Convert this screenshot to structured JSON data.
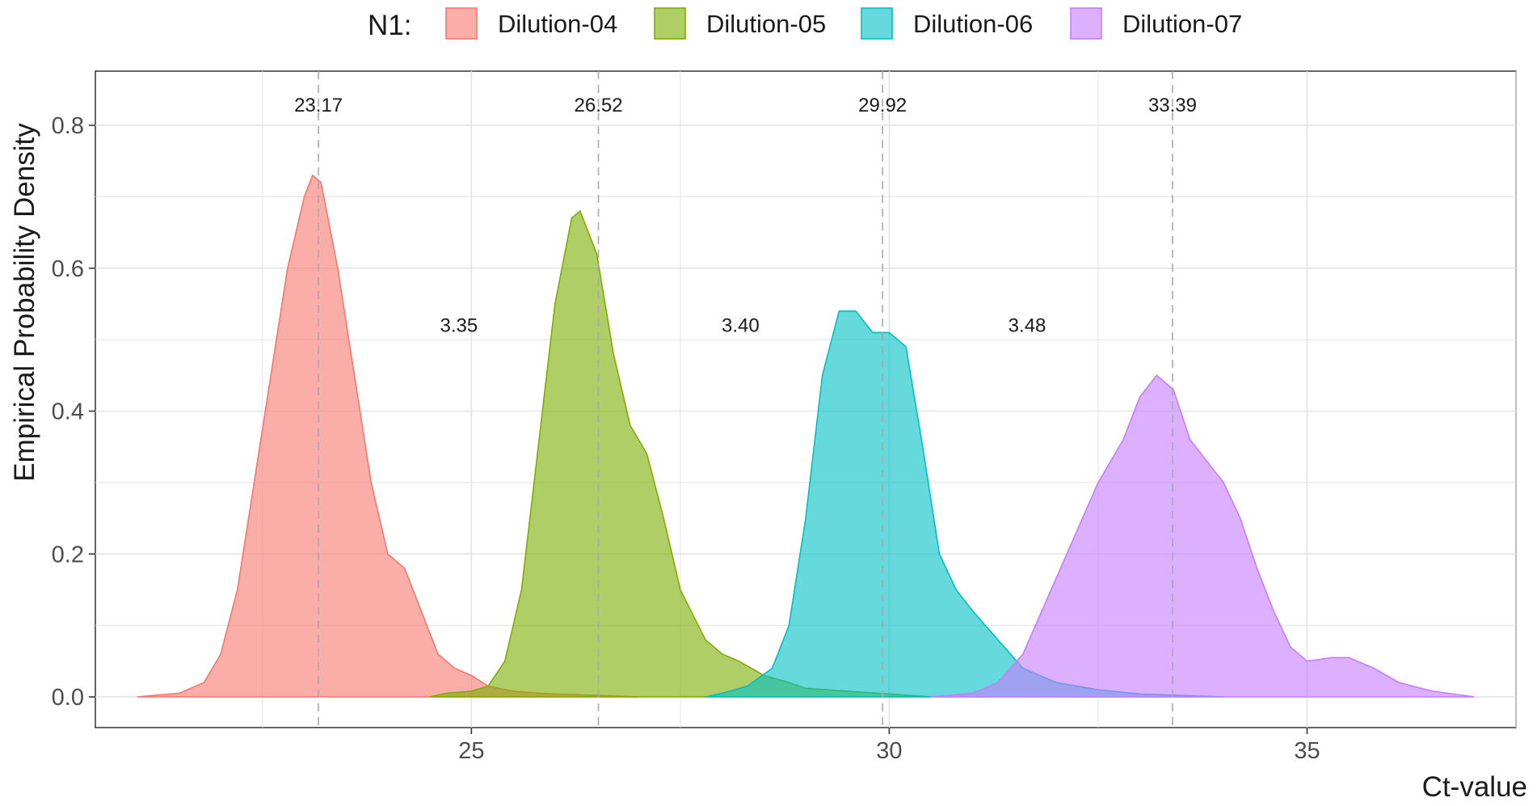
{
  "chart_data": {
    "type": "area",
    "title": "",
    "xlabel": "Ct-value",
    "ylabel": "Empirical Probability Density",
    "legend": {
      "title": "N1:",
      "placement": "top",
      "entries": [
        "Dilution-04",
        "Dilution-05",
        "Dilution-06",
        "Dilution-07"
      ]
    },
    "xlim": [
      20.5,
      37.5
    ],
    "ylim": [
      -0.04,
      0.8
    ],
    "x_ticks": [
      25,
      30,
      35
    ],
    "y_ticks": [
      0.0,
      0.2,
      0.4,
      0.6,
      0.8
    ],
    "x_tick_labels": [
      "25",
      "30",
      "35"
    ],
    "y_tick_labels": [
      "0.0",
      "0.2",
      "0.4",
      "0.6",
      "0.8"
    ],
    "grid": true,
    "series": [
      {
        "name": "Dilution-04",
        "color": "#F8766D",
        "mean": 23.17,
        "mean_label": "23.17",
        "points": [
          [
            21.0,
            0.0
          ],
          [
            21.2,
            0.002
          ],
          [
            21.5,
            0.005
          ],
          [
            21.8,
            0.02
          ],
          [
            22.0,
            0.06
          ],
          [
            22.2,
            0.15
          ],
          [
            22.4,
            0.3
          ],
          [
            22.6,
            0.45
          ],
          [
            22.8,
            0.6
          ],
          [
            23.0,
            0.7
          ],
          [
            23.1,
            0.73
          ],
          [
            23.2,
            0.72
          ],
          [
            23.4,
            0.6
          ],
          [
            23.6,
            0.45
          ],
          [
            23.8,
            0.3
          ],
          [
            24.0,
            0.2
          ],
          [
            24.2,
            0.18
          ],
          [
            24.4,
            0.12
          ],
          [
            24.6,
            0.06
          ],
          [
            24.8,
            0.04
          ],
          [
            25.0,
            0.03
          ],
          [
            25.2,
            0.015
          ],
          [
            25.5,
            0.008
          ],
          [
            25.8,
            0.005
          ],
          [
            26.0,
            0.004
          ],
          [
            26.5,
            0.002
          ],
          [
            27.0,
            0.0
          ]
        ]
      },
      {
        "name": "Dilution-05",
        "color": "#7CAE00",
        "mean": 26.52,
        "mean_label": "26.52",
        "points": [
          [
            24.5,
            0.0
          ],
          [
            24.7,
            0.005
          ],
          [
            25.0,
            0.008
          ],
          [
            25.2,
            0.015
          ],
          [
            25.4,
            0.05
          ],
          [
            25.6,
            0.15
          ],
          [
            25.8,
            0.35
          ],
          [
            26.0,
            0.55
          ],
          [
            26.2,
            0.67
          ],
          [
            26.3,
            0.68
          ],
          [
            26.5,
            0.62
          ],
          [
            26.7,
            0.48
          ],
          [
            26.9,
            0.38
          ],
          [
            27.1,
            0.34
          ],
          [
            27.3,
            0.25
          ],
          [
            27.5,
            0.15
          ],
          [
            27.8,
            0.08
          ],
          [
            28.0,
            0.06
          ],
          [
            28.2,
            0.05
          ],
          [
            28.5,
            0.03
          ],
          [
            28.8,
            0.02
          ],
          [
            29.0,
            0.012
          ],
          [
            29.5,
            0.008
          ],
          [
            30.0,
            0.004
          ],
          [
            30.5,
            0.0
          ]
        ]
      },
      {
        "name": "Dilution-06",
        "color": "#00BFC4",
        "mean": 29.92,
        "mean_label": "29.92",
        "points": [
          [
            27.8,
            0.0
          ],
          [
            28.0,
            0.005
          ],
          [
            28.3,
            0.015
          ],
          [
            28.6,
            0.04
          ],
          [
            28.8,
            0.1
          ],
          [
            29.0,
            0.25
          ],
          [
            29.2,
            0.45
          ],
          [
            29.4,
            0.54
          ],
          [
            29.6,
            0.54
          ],
          [
            29.8,
            0.51
          ],
          [
            30.0,
            0.51
          ],
          [
            30.2,
            0.49
          ],
          [
            30.4,
            0.35
          ],
          [
            30.6,
            0.2
          ],
          [
            30.8,
            0.15
          ],
          [
            31.0,
            0.12
          ],
          [
            31.3,
            0.08
          ],
          [
            31.6,
            0.04
          ],
          [
            32.0,
            0.02
          ],
          [
            32.5,
            0.01
          ],
          [
            33.0,
            0.004
          ],
          [
            34.0,
            0.0
          ]
        ]
      },
      {
        "name": "Dilution-07",
        "color": "#C77CFF",
        "mean": 33.39,
        "mean_label": "33.39",
        "points": [
          [
            30.5,
            0.0
          ],
          [
            31.0,
            0.005
          ],
          [
            31.3,
            0.02
          ],
          [
            31.6,
            0.06
          ],
          [
            31.9,
            0.14
          ],
          [
            32.2,
            0.22
          ],
          [
            32.5,
            0.3
          ],
          [
            32.8,
            0.36
          ],
          [
            33.0,
            0.42
          ],
          [
            33.2,
            0.45
          ],
          [
            33.4,
            0.43
          ],
          [
            33.6,
            0.36
          ],
          [
            33.8,
            0.33
          ],
          [
            34.0,
            0.3
          ],
          [
            34.2,
            0.25
          ],
          [
            34.4,
            0.18
          ],
          [
            34.6,
            0.12
          ],
          [
            34.8,
            0.07
          ],
          [
            35.0,
            0.05
          ],
          [
            35.3,
            0.055
          ],
          [
            35.5,
            0.055
          ],
          [
            35.8,
            0.04
          ],
          [
            36.1,
            0.02
          ],
          [
            36.5,
            0.008
          ],
          [
            37.0,
            0.0
          ]
        ]
      }
    ],
    "difference_labels": [
      {
        "text": "3.35",
        "x": 24.85,
        "y": 0.52
      },
      {
        "text": "3.40",
        "x": 28.22,
        "y": 0.52
      },
      {
        "text": "3.48",
        "x": 31.65,
        "y": 0.52
      }
    ]
  }
}
